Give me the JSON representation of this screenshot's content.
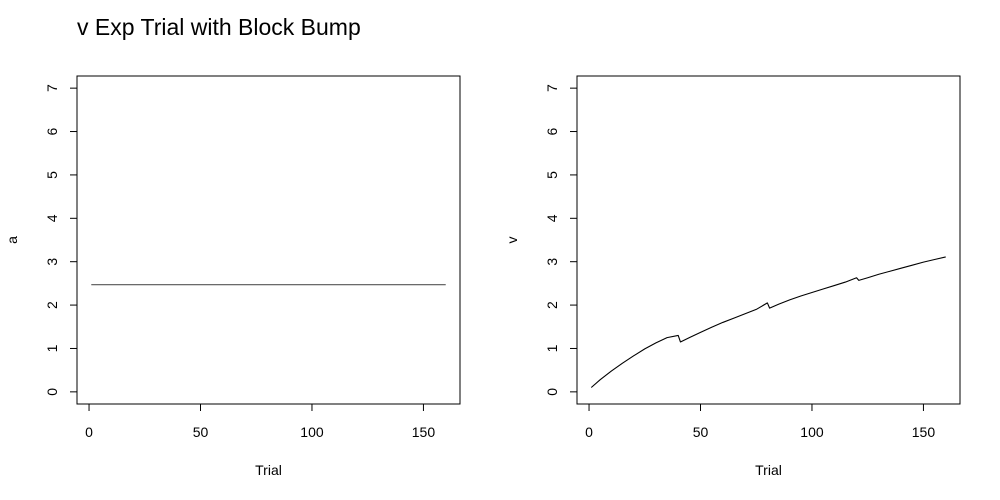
{
  "title": "v Exp Trial with Block Bump",
  "colors": {
    "line_left": "#555555",
    "line_right": "#000000",
    "frame": "#000000"
  },
  "chart_data": [
    {
      "type": "line",
      "xlabel": "Trial",
      "ylabel": "a",
      "xlim": [
        -5.4,
        166.4
      ],
      "ylim": [
        -0.28,
        7.28
      ],
      "xticks": [
        0,
        50,
        100,
        150
      ],
      "yticks": [
        0,
        1,
        2,
        3,
        4,
        5,
        6,
        7
      ],
      "grid": false,
      "series": [
        {
          "x": [
            1,
            160
          ],
          "y": [
            2.47,
            2.47
          ]
        }
      ]
    },
    {
      "type": "line",
      "xlabel": "Trial",
      "ylabel": "v",
      "xlim": [
        -5.4,
        166.4
      ],
      "ylim": [
        -0.28,
        7.28
      ],
      "xticks": [
        0,
        50,
        100,
        150
      ],
      "yticks": [
        0,
        1,
        2,
        3,
        4,
        5,
        6,
        7
      ],
      "grid": false,
      "series": [
        {
          "x": [
            1,
            5,
            10,
            15,
            20,
            25,
            30,
            35,
            40,
            41,
            45,
            50,
            55,
            60,
            65,
            70,
            75,
            80,
            81,
            85,
            90,
            95,
            100,
            105,
            110,
            115,
            120,
            121,
            125,
            130,
            135,
            140,
            145,
            150,
            155,
            160
          ],
          "y": [
            0.1,
            0.28,
            0.48,
            0.66,
            0.83,
            0.99,
            1.13,
            1.25,
            1.3,
            1.15,
            1.25,
            1.37,
            1.49,
            1.6,
            1.7,
            1.8,
            1.9,
            2.05,
            1.93,
            2.02,
            2.12,
            2.21,
            2.29,
            2.37,
            2.45,
            2.53,
            2.63,
            2.57,
            2.63,
            2.71,
            2.78,
            2.85,
            2.92,
            2.99,
            3.05,
            3.11
          ]
        }
      ]
    }
  ]
}
